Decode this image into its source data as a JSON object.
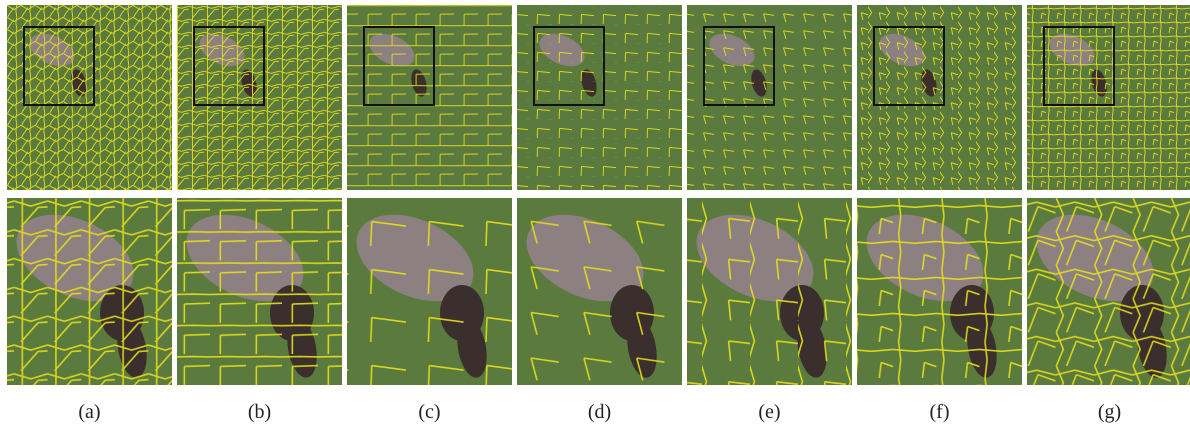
{
  "figure": {
    "labels": [
      "(a)",
      "(b)",
      "(c)",
      "(d)",
      "(e)",
      "(f)",
      "(g)"
    ]
  }
}
